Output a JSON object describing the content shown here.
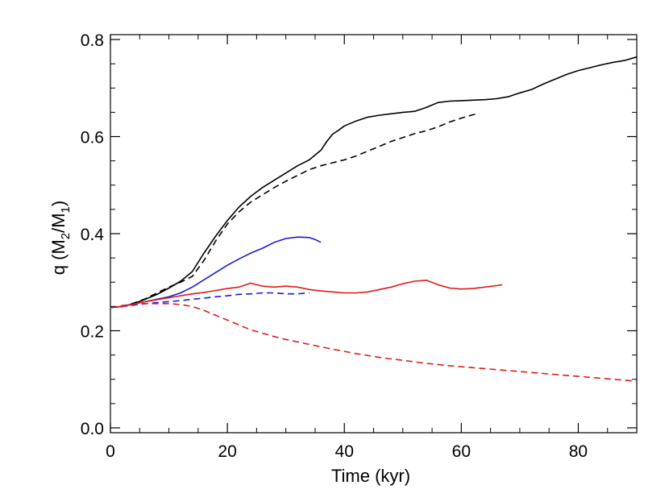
{
  "chart_data": {
    "type": "line",
    "xlabel": "Time (kyr)",
    "ylabel": "q (M2/M1)",
    "ylabel_parts": {
      "prefix": "q (M",
      "sub1": "2",
      "mid": "/M",
      "sub2": "1",
      "suffix": ")"
    },
    "xlim": [
      0,
      90
    ],
    "ylim": [
      -0.01,
      0.81
    ],
    "xticks": [
      0,
      20,
      40,
      60,
      80
    ],
    "xtick_labels": [
      "0",
      "20",
      "40",
      "60",
      "80"
    ],
    "yticks": [
      0.0,
      0.2,
      0.4,
      0.6,
      0.8
    ],
    "ytick_labels": [
      "0.0",
      "0.2",
      "0.4",
      "0.6",
      "0.8"
    ],
    "grid": false,
    "colors": {
      "black": "#000000",
      "blue": "#1a1ad6",
      "red": "#e01a1a"
    },
    "series": [
      {
        "color": "black",
        "dash": "solid",
        "x": [
          0,
          2,
          4,
          6,
          8,
          10,
          12,
          14,
          16,
          18,
          20,
          22,
          24,
          26,
          28,
          30,
          32,
          34,
          36,
          37,
          38,
          39,
          40,
          42,
          44,
          46,
          48,
          50,
          52,
          54,
          56,
          58,
          60,
          62,
          64,
          66,
          68,
          70,
          72,
          74,
          76,
          78,
          80,
          82,
          84,
          86,
          88,
          90
        ],
        "y": [
          0.248,
          0.25,
          0.256,
          0.265,
          0.275,
          0.288,
          0.302,
          0.322,
          0.36,
          0.395,
          0.427,
          0.455,
          0.477,
          0.495,
          0.51,
          0.525,
          0.54,
          0.552,
          0.572,
          0.59,
          0.605,
          0.613,
          0.622,
          0.632,
          0.64,
          0.644,
          0.647,
          0.65,
          0.652,
          0.66,
          0.67,
          0.673,
          0.674,
          0.675,
          0.676,
          0.678,
          0.682,
          0.69,
          0.697,
          0.708,
          0.718,
          0.728,
          0.736,
          0.742,
          0.748,
          0.753,
          0.757,
          0.764
        ]
      },
      {
        "color": "black",
        "dash": "dashed",
        "x": [
          0,
          2,
          4,
          6,
          8,
          10,
          12,
          14,
          16,
          18,
          20,
          22,
          24,
          26,
          28,
          30,
          32,
          34,
          36,
          38,
          40,
          42,
          44,
          46,
          48,
          50,
          52,
          54,
          56,
          58,
          60,
          62,
          63
        ],
        "y": [
          0.248,
          0.25,
          0.257,
          0.266,
          0.278,
          0.29,
          0.3,
          0.312,
          0.345,
          0.385,
          0.42,
          0.445,
          0.465,
          0.48,
          0.495,
          0.508,
          0.52,
          0.532,
          0.54,
          0.546,
          0.552,
          0.56,
          0.57,
          0.58,
          0.59,
          0.598,
          0.606,
          0.612,
          0.62,
          0.63,
          0.638,
          0.645,
          0.648
        ]
      },
      {
        "color": "blue",
        "dash": "solid",
        "x": [
          0,
          2,
          4,
          6,
          8,
          10,
          12,
          14,
          16,
          18,
          20,
          22,
          24,
          26,
          28,
          30,
          32,
          34,
          35,
          36
        ],
        "y": [
          0.248,
          0.25,
          0.255,
          0.26,
          0.265,
          0.27,
          0.278,
          0.29,
          0.305,
          0.32,
          0.335,
          0.348,
          0.36,
          0.37,
          0.382,
          0.39,
          0.393,
          0.392,
          0.388,
          0.382
        ]
      },
      {
        "color": "blue",
        "dash": "dashed",
        "x": [
          0,
          2,
          4,
          6,
          8,
          10,
          12,
          14,
          16,
          18,
          20,
          22,
          24,
          26,
          28,
          30,
          32,
          34
        ],
        "y": [
          0.248,
          0.25,
          0.253,
          0.256,
          0.258,
          0.26,
          0.262,
          0.265,
          0.267,
          0.27,
          0.272,
          0.275,
          0.276,
          0.278,
          0.278,
          0.276,
          0.276,
          0.278
        ]
      },
      {
        "color": "red",
        "dash": "solid",
        "x": [
          0,
          2,
          4,
          6,
          8,
          10,
          12,
          14,
          16,
          18,
          20,
          22,
          24,
          26,
          28,
          30,
          32,
          34,
          36,
          38,
          40,
          42,
          44,
          46,
          48,
          50,
          52,
          54,
          56,
          58,
          60,
          62,
          64,
          66,
          67
        ],
        "y": [
          0.248,
          0.25,
          0.255,
          0.26,
          0.264,
          0.268,
          0.272,
          0.276,
          0.279,
          0.283,
          0.287,
          0.29,
          0.298,
          0.292,
          0.29,
          0.292,
          0.29,
          0.285,
          0.282,
          0.28,
          0.278,
          0.278,
          0.28,
          0.285,
          0.29,
          0.297,
          0.302,
          0.304,
          0.295,
          0.288,
          0.286,
          0.287,
          0.29,
          0.293,
          0.295
        ]
      },
      {
        "color": "red",
        "dash": "dashed",
        "x": [
          0,
          2,
          4,
          6,
          8,
          10,
          12,
          14,
          16,
          18,
          20,
          22,
          24,
          26,
          28,
          30,
          34,
          38,
          42,
          46,
          50,
          54,
          58,
          62,
          66,
          70,
          74,
          78,
          82,
          86,
          90
        ],
        "y": [
          0.248,
          0.252,
          0.255,
          0.256,
          0.256,
          0.256,
          0.254,
          0.25,
          0.242,
          0.232,
          0.222,
          0.212,
          0.202,
          0.195,
          0.188,
          0.182,
          0.172,
          0.162,
          0.153,
          0.145,
          0.139,
          0.133,
          0.128,
          0.124,
          0.12,
          0.116,
          0.112,
          0.108,
          0.104,
          0.1,
          0.096
        ]
      }
    ]
  }
}
